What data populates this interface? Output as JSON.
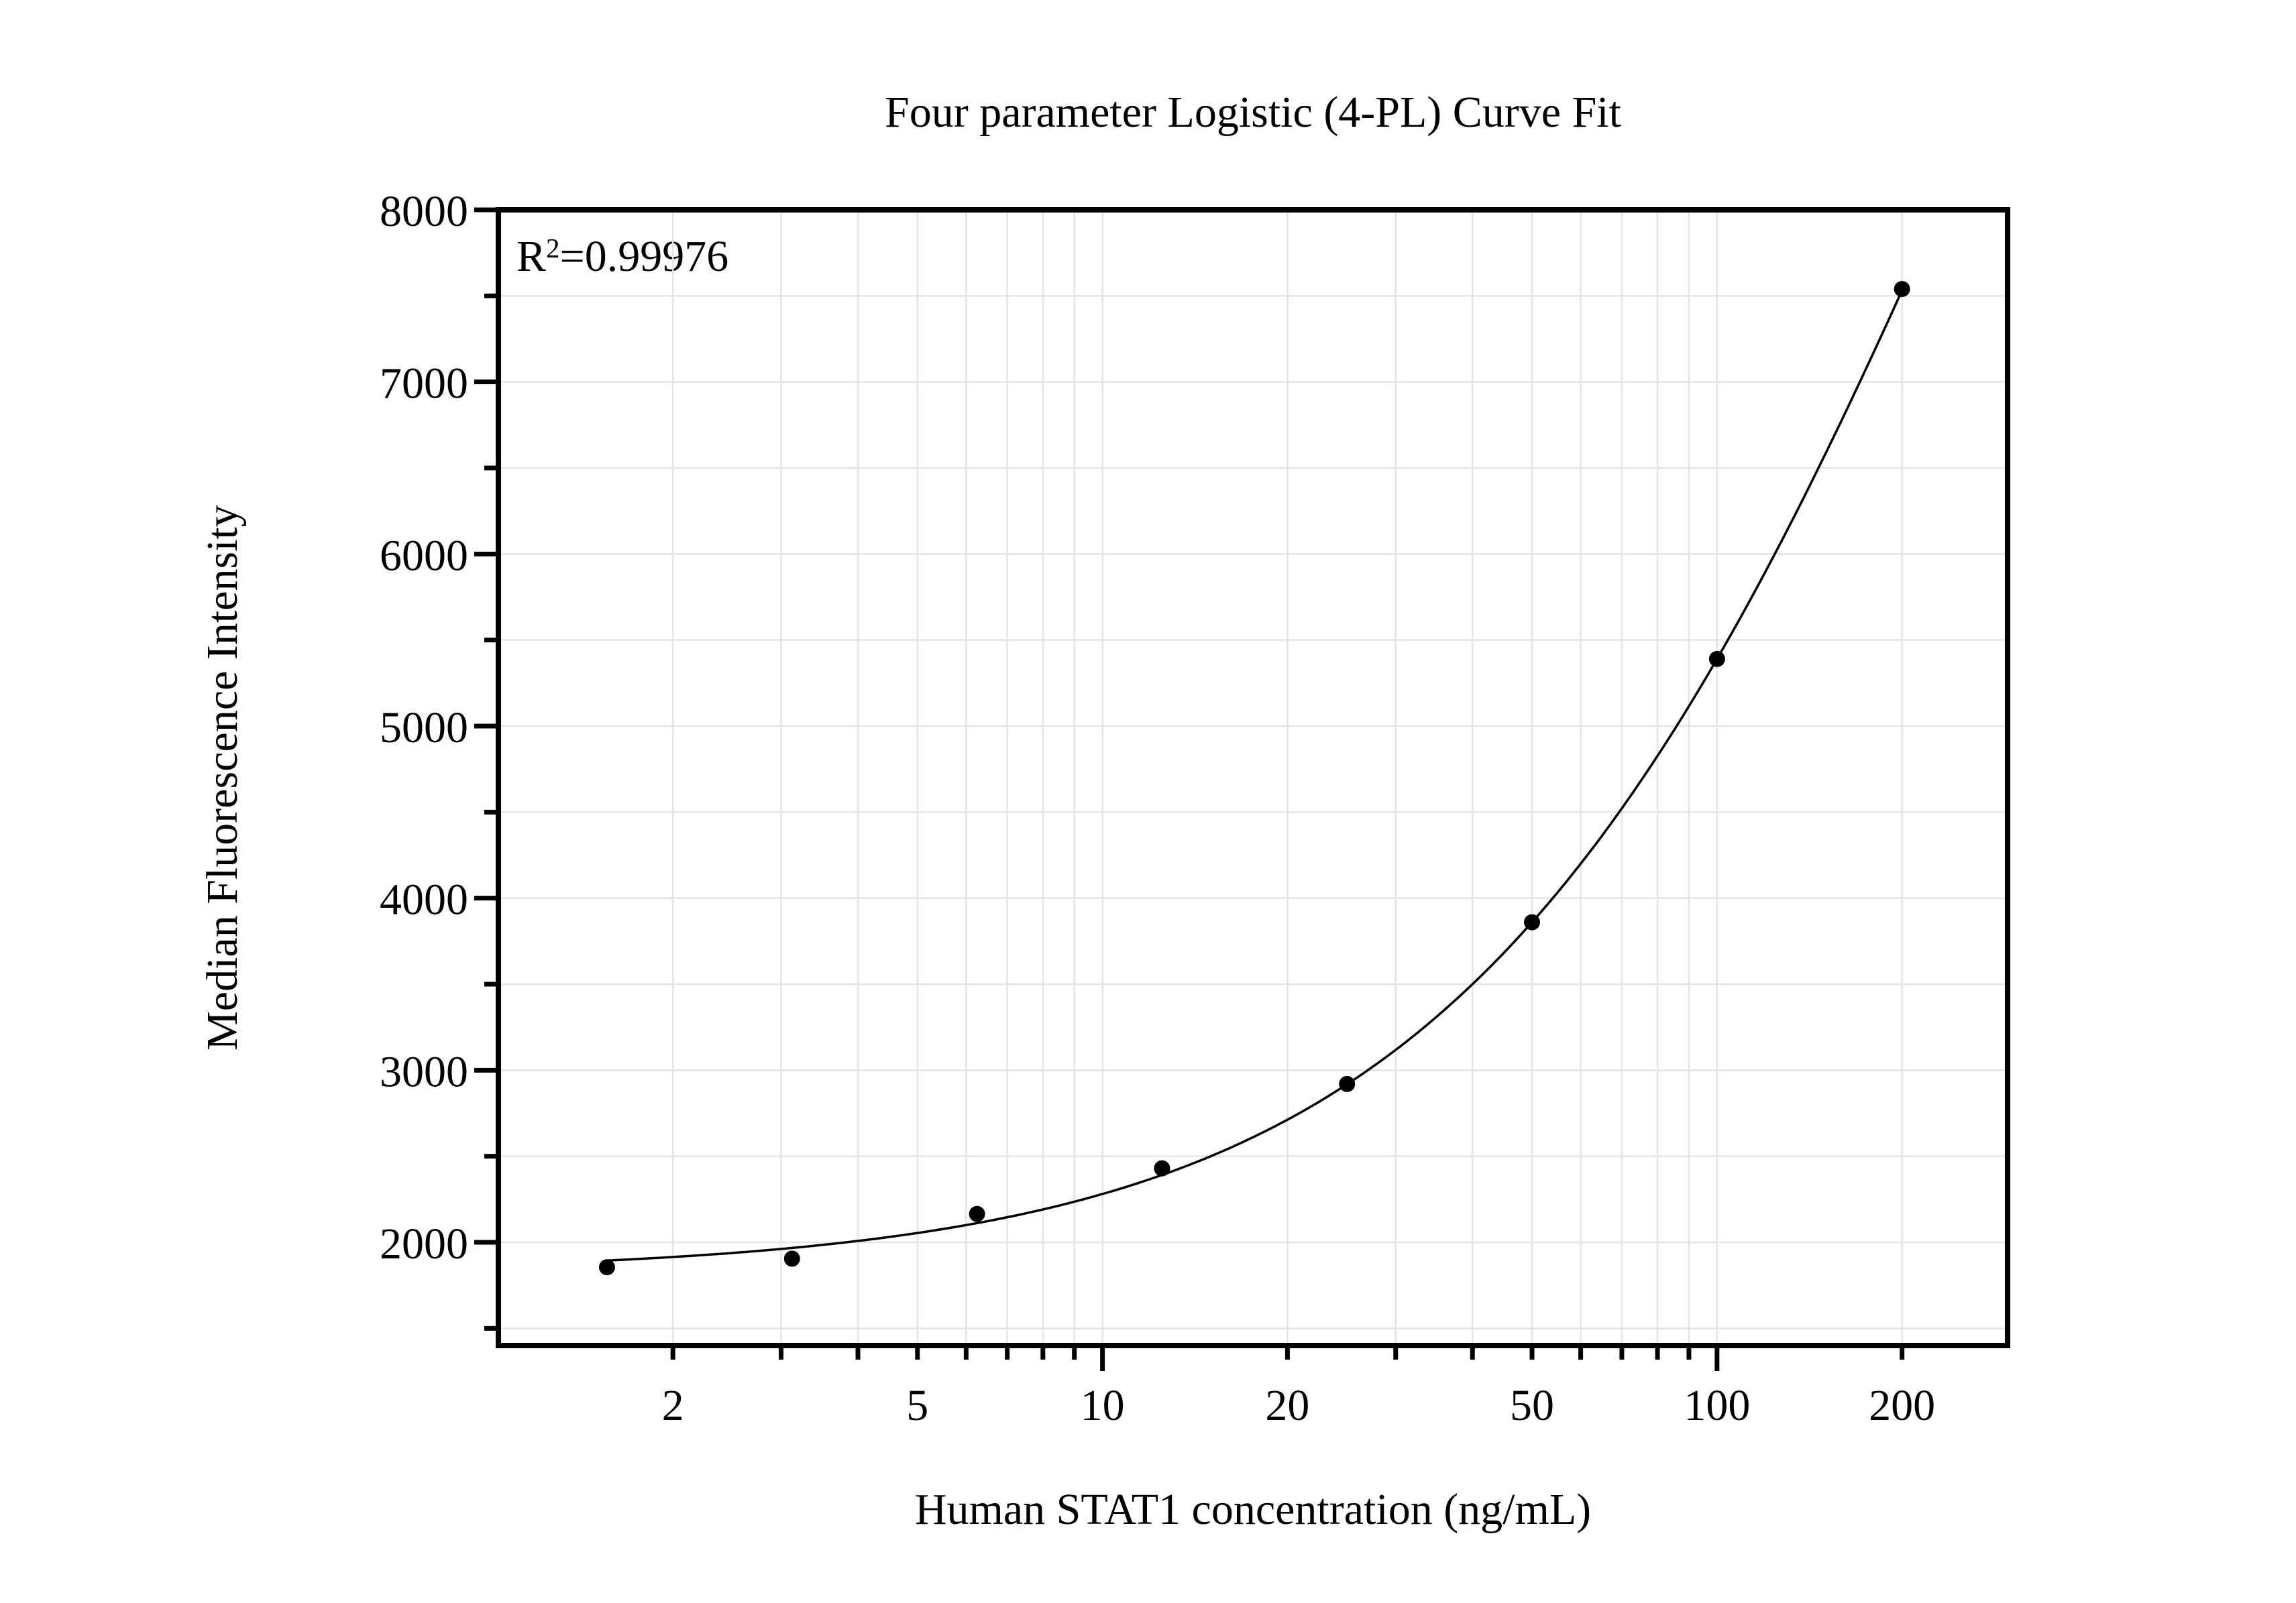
{
  "title": "Four parameter Logistic (4-PL) Curve Fit",
  "annotation": {
    "prefix": "R",
    "sup": "2",
    "value": "=0.99976"
  },
  "chart_data": {
    "type": "scatter",
    "title": "Four parameter Logistic (4-PL) Curve Fit",
    "xlabel": "Human STAT1 concentration (ng/mL)",
    "ylabel": "Median Fluorescence Intensity",
    "annotation_text": "R2=0.99976",
    "x_scale": "log",
    "y_scale": "linear",
    "xlim": [
      1.04,
      297
    ],
    "ylim": [
      1400,
      8000
    ],
    "x": [
      1.5625,
      3.125,
      6.25,
      12.5,
      25,
      50,
      100,
      200
    ],
    "y": [
      1855,
      1905,
      2165,
      2430,
      2920,
      3860,
      5390,
      7540
    ],
    "x_tick_labels": [
      "2",
      "5",
      "10",
      "20",
      "50",
      "100",
      "200"
    ],
    "x_labeled_ticks": [
      2,
      5,
      10,
      20,
      50,
      100,
      200
    ],
    "x_decade_ticks": [
      10,
      100
    ],
    "x_minor_ticks": [
      2,
      3,
      4,
      5,
      6,
      7,
      8,
      9,
      10,
      20,
      30,
      40,
      50,
      60,
      70,
      80,
      90,
      100,
      200
    ],
    "y_major_ticks": [
      2000,
      3000,
      4000,
      5000,
      6000,
      7000,
      8000
    ],
    "y_major_tick_labels": [
      "2000",
      "3000",
      "4000",
      "5000",
      "6000",
      "7000",
      "8000"
    ],
    "y_minor_ticks": [
      1500,
      2500,
      3500,
      4500,
      5500,
      6500,
      7500
    ],
    "grid": true,
    "legend": "none",
    "fit_curve": {
      "model": "4PL",
      "A": 1820,
      "B": 1.0,
      "C": 300,
      "D": 16100,
      "x_start": 1.5625,
      "x_end": 200
    },
    "colors": {
      "background": "#ffffff",
      "frame": "#000000",
      "grid": "#e4e4e4",
      "points": "#000000",
      "curve": "#000000",
      "text": "#000000"
    }
  }
}
